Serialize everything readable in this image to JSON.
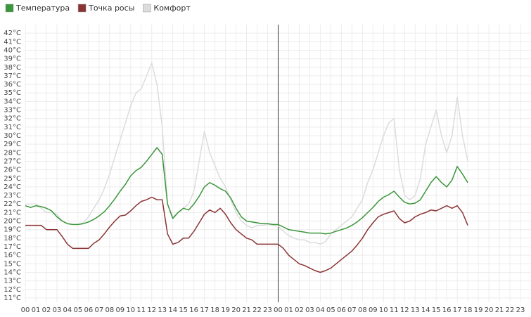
{
  "chart_data": {
    "type": "line",
    "legend": "top-left",
    "grid": true,
    "x": [
      0,
      0.5,
      1,
      1.5,
      2,
      2.5,
      3,
      3.5,
      4,
      4.5,
      5,
      5.5,
      6,
      6.5,
      7,
      7.5,
      8,
      8.5,
      9,
      9.5,
      10,
      10.5,
      11,
      11.5,
      12,
      12.5,
      13,
      13.5,
      14,
      14.5,
      15,
      15.5,
      16,
      16.5,
      17,
      17.5,
      18,
      18.5,
      19,
      19.5,
      20,
      20.5,
      21,
      21.5,
      22,
      22.5,
      23,
      23.5,
      24,
      24.5,
      25,
      25.5,
      26,
      26.5,
      27,
      27.5,
      28,
      28.5,
      29,
      29.5,
      30,
      30.5,
      31,
      31.5,
      32,
      32.5,
      33,
      33.5,
      34,
      34.5,
      35,
      35.5,
      36,
      36.5,
      37,
      37.5,
      38,
      38.5,
      39,
      39.5,
      40,
      40.5,
      41,
      41.5,
      42
    ],
    "series": [
      {
        "name": "Комфорт",
        "color": "#dcdcdc",
        "values": [
          22.0,
          22.0,
          22.0,
          21.5,
          21.0,
          21.0,
          20.8,
          20.0,
          19.7,
          19.6,
          19.6,
          19.8,
          20.5,
          21.5,
          22.5,
          23.8,
          25.5,
          27.5,
          29.5,
          31.5,
          33.5,
          35.0,
          35.5,
          37.0,
          38.5,
          36.0,
          31.0,
          22.0,
          20.5,
          21.0,
          21.5,
          22.0,
          23.5,
          27.0,
          30.5,
          28.0,
          26.5,
          25.0,
          24.0,
          22.5,
          21.0,
          20.0,
          19.5,
          19.2,
          19.5,
          19.5,
          19.6,
          19.5,
          19.4,
          18.8,
          18.3,
          18.0,
          17.8,
          17.8,
          17.5,
          17.5,
          17.3,
          17.6,
          18.5,
          19.0,
          19.5,
          20.0,
          20.5,
          21.5,
          22.5,
          24.5,
          26.0,
          28.0,
          30.0,
          31.5,
          32.0,
          26.0,
          23.0,
          22.5,
          23.0,
          25.0,
          29.0,
          31.0,
          33.0,
          30.0,
          28.0,
          30.0,
          34.5,
          30.0,
          27.0
        ]
      },
      {
        "name": "Точка росы",
        "color": "#8b3333",
        "values": [
          19.5,
          19.5,
          19.5,
          19.5,
          19.0,
          19.0,
          19.0,
          18.2,
          17.3,
          16.8,
          16.8,
          16.8,
          16.8,
          17.4,
          17.8,
          18.5,
          19.3,
          20.0,
          20.6,
          20.7,
          21.2,
          21.8,
          22.3,
          22.5,
          22.8,
          22.5,
          22.5,
          18.5,
          17.3,
          17.5,
          18.0,
          18.0,
          18.8,
          19.8,
          20.8,
          21.3,
          21.0,
          21.5,
          20.8,
          19.8,
          19.0,
          18.5,
          18.0,
          17.8,
          17.3,
          17.3,
          17.3,
          17.3,
          17.3,
          16.8,
          16.0,
          15.5,
          15.0,
          14.8,
          14.5,
          14.2,
          14.0,
          14.2,
          14.5,
          15.0,
          15.5,
          16.0,
          16.5,
          17.2,
          18.0,
          19.0,
          19.8,
          20.5,
          20.8,
          21.0,
          21.2,
          20.3,
          19.8,
          20.0,
          20.5,
          20.8,
          21.0,
          21.3,
          21.2,
          21.5,
          21.8,
          21.5,
          21.8,
          21.0,
          19.5
        ]
      },
      {
        "name": "Температура",
        "color": "#3a963a",
        "values": [
          21.8,
          21.6,
          21.8,
          21.7,
          21.5,
          21.2,
          20.5,
          20.0,
          19.7,
          19.6,
          19.6,
          19.7,
          19.9,
          20.2,
          20.6,
          21.1,
          21.8,
          22.6,
          23.5,
          24.3,
          25.3,
          25.9,
          26.3,
          27.0,
          27.8,
          28.6,
          27.8,
          22.0,
          20.3,
          21.0,
          21.5,
          21.3,
          22.0,
          22.9,
          24.0,
          24.5,
          24.2,
          23.8,
          23.5,
          22.7,
          21.5,
          20.5,
          20.0,
          19.9,
          19.8,
          19.7,
          19.7,
          19.6,
          19.6,
          19.3,
          19.0,
          18.9,
          18.8,
          18.7,
          18.6,
          18.6,
          18.6,
          18.5,
          18.6,
          18.8,
          19.0,
          19.2,
          19.5,
          19.9,
          20.4,
          21.0,
          21.6,
          22.3,
          22.8,
          23.1,
          23.5,
          22.8,
          22.2,
          22.0,
          22.1,
          22.5,
          23.5,
          24.5,
          25.2,
          24.5,
          24.0,
          24.8,
          26.4,
          25.5,
          24.5
        ]
      }
    ],
    "legend_order": [
      "Температура",
      "Точка росы",
      "Комфорт"
    ],
    "xlim": [
      0,
      48
    ],
    "xticks": [
      {
        "value": 0,
        "label": "00"
      },
      {
        "value": 1,
        "label": "01"
      },
      {
        "value": 2,
        "label": "02"
      },
      {
        "value": 3,
        "label": "03"
      },
      {
        "value": 4,
        "label": "04"
      },
      {
        "value": 5,
        "label": "05"
      },
      {
        "value": 6,
        "label": "06"
      },
      {
        "value": 7,
        "label": "07"
      },
      {
        "value": 8,
        "label": "08"
      },
      {
        "value": 9,
        "label": "09"
      },
      10,
      11,
      12,
      13,
      14,
      15,
      16,
      17,
      18,
      19,
      20,
      21,
      22,
      23,
      {
        "value": 24,
        "label": "00"
      },
      {
        "value": 25,
        "label": "01"
      },
      {
        "value": 26,
        "label": "02"
      },
      {
        "value": 27,
        "label": "03"
      },
      {
        "value": 28,
        "label": "04"
      },
      {
        "value": 29,
        "label": "05"
      },
      {
        "value": 30,
        "label": "06"
      },
      {
        "value": 31,
        "label": "07"
      },
      {
        "value": 32,
        "label": "08"
      },
      {
        "value": 33,
        "label": "09"
      },
      {
        "value": 34,
        "label": "10"
      },
      {
        "value": 35,
        "label": "11"
      },
      {
        "value": 36,
        "label": "12"
      },
      {
        "value": 37,
        "label": "13"
      },
      {
        "value": 38,
        "label": "14"
      },
      {
        "value": 39,
        "label": "15"
      },
      {
        "value": 40,
        "label": "16"
      },
      {
        "value": 41,
        "label": "17"
      },
      {
        "value": 42,
        "label": "18"
      },
      {
        "value": 43,
        "label": "19"
      },
      {
        "value": 44,
        "label": "20"
      },
      {
        "value": 45,
        "label": "21"
      },
      {
        "value": 46,
        "label": "22"
      },
      {
        "value": 47,
        "label": "23"
      }
    ],
    "day_divider": 24,
    "ylim": [
      10.5,
      43
    ],
    "yticks": [
      {
        "value": 11,
        "label": "11°C"
      },
      {
        "value": 12,
        "label": "12°C"
      },
      {
        "value": 13,
        "label": "13°C"
      },
      {
        "value": 14,
        "label": "14°C"
      },
      {
        "value": 15,
        "label": "15°C"
      },
      {
        "value": 16,
        "label": "16°C"
      },
      {
        "value": 17,
        "label": "17°C"
      },
      {
        "value": 18,
        "label": "18°C"
      },
      {
        "value": 19,
        "label": "19°C"
      },
      {
        "value": 20,
        "label": "20°C"
      },
      {
        "value": 21,
        "label": "21°C"
      },
      {
        "value": 22,
        "label": "22°C"
      },
      {
        "value": 23,
        "label": "23°C"
      },
      {
        "value": 24,
        "label": "24°C"
      },
      {
        "value": 25,
        "label": "25°C"
      },
      {
        "value": 26,
        "label": "26°C"
      },
      {
        "value": 27,
        "label": "27°C"
      },
      {
        "value": 28,
        "label": "28°C"
      },
      {
        "value": 29,
        "label": "29°C"
      },
      {
        "value": 30,
        "label": "30°C"
      },
      {
        "value": 31,
        "label": "31°C"
      },
      {
        "value": 32,
        "label": "32°C"
      },
      {
        "value": 33,
        "label": "33°C"
      },
      {
        "value": 34,
        "label": "34°C"
      },
      {
        "value": 35,
        "label": "35°C"
      },
      {
        "value": 36,
        "label": "36°C"
      },
      {
        "value": 37,
        "label": "37°C"
      },
      {
        "value": 38,
        "label": "38°C"
      },
      {
        "value": 39,
        "label": "39°C"
      },
      {
        "value": 40,
        "label": "40°C"
      },
      {
        "value": 41,
        "label": "41°C"
      },
      {
        "value": 42,
        "label": "42°C"
      }
    ]
  }
}
